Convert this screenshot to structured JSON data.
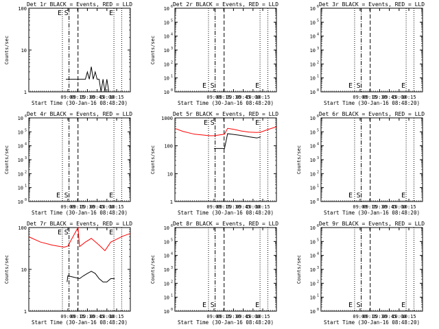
{
  "window_title": "",
  "chart_data": [
    {
      "type": "line",
      "title": "Det 1r BLACK = Events, RED = LLD",
      "ylabel": "Counts/sec",
      "xlabel": "Start Time (30-Jan-16 08:48:20)",
      "x_ticks": [
        "09:00",
        "09:15",
        "09:30",
        "09:45",
        "10:00",
        "10:15"
      ],
      "y_log": true,
      "y_range": [
        1,
        100
      ],
      "y_ticks": [
        "1",
        "10",
        "100"
      ],
      "x_range_minutes": [
        8.0,
        10.6
      ],
      "markers": [
        {
          "label": "E",
          "type": "dotted",
          "x": 8.86
        },
        {
          "label": "S",
          "type": "dashdot",
          "x": 9.03
        },
        {
          "label": "",
          "type": "dashed",
          "x": 9.26
        },
        {
          "label": "E",
          "type": "dotted",
          "x": 10.18
        },
        {
          "label": "",
          "type": "dotted",
          "x": 10.38
        }
      ],
      "series": [
        {
          "name": "BLACK",
          "color": "#000000",
          "x": [
            8.95,
            9.27,
            9.35,
            9.45,
            9.5,
            9.55,
            9.6,
            9.65,
            9.7,
            9.75,
            9.8,
            9.85,
            9.9,
            9.95,
            10.0,
            10.05
          ],
          "y": [
            2,
            2,
            2,
            2,
            3,
            2,
            4,
            2,
            3,
            2,
            2,
            1,
            2,
            1,
            2,
            1
          ]
        },
        {
          "name": "RED",
          "color": "#ff0000",
          "x": [],
          "y": []
        }
      ]
    },
    {
      "type": "line",
      "title": "Det 2r BLACK = Events, RED = LLD",
      "ylabel": "Counts/sec",
      "xlabel": "Start Time (30-Jan-16 08:48:20)",
      "x_ticks": [
        "09:00",
        "09:15",
        "09:30",
        "09:45",
        "10:00",
        "10:15"
      ],
      "y_log": true,
      "y_range": [
        1,
        1000000
      ],
      "y_ticks": [
        "10^0",
        "10^1",
        "10^2",
        "10^3",
        "10^4",
        "10^5",
        "10^6"
      ],
      "x_range_minutes": [
        8.0,
        10.6
      ],
      "markers": [
        {
          "label": "E",
          "type": "dotted",
          "x": 8.86
        },
        {
          "label": "S",
          "type": "dashdot",
          "x": 9.03
        },
        {
          "label": "",
          "type": "dashed",
          "x": 9.26
        },
        {
          "label": "E",
          "type": "dotted",
          "x": 10.18
        },
        {
          "label": "",
          "type": "dotted",
          "x": 10.38
        }
      ],
      "series": []
    },
    {
      "type": "line",
      "title": "Det 3r BLACK = Events, RED = LLD",
      "ylabel": "",
      "xlabel": "Start Time (30-Jan-16 08:48:20)",
      "x_ticks": [
        "09:00",
        "09:15",
        "09:30",
        "09:45",
        "10:00",
        "10:15"
      ],
      "y_log": true,
      "y_range": [
        1,
        1000000
      ],
      "y_ticks": [
        "10^0",
        "10^1",
        "10^2",
        "10^3",
        "10^4",
        "10^5",
        "10^6"
      ],
      "x_range_minutes": [
        8.0,
        10.6
      ],
      "markers": [
        {
          "label": "E",
          "type": "dotted",
          "x": 8.86
        },
        {
          "label": "S",
          "type": "dashdot",
          "x": 9.03
        },
        {
          "label": "",
          "type": "dashed",
          "x": 9.26
        },
        {
          "label": "E",
          "type": "dotted",
          "x": 10.18
        },
        {
          "label": "",
          "type": "dotted",
          "x": 10.38
        }
      ],
      "series": []
    },
    {
      "type": "line",
      "title": "Det 4r BLACK = Events, RED = LLD",
      "ylabel": "Counts/sec",
      "xlabel": "Start Time (30-Jan-16 08:48:20)",
      "x_ticks": [
        "09:00",
        "09:15",
        "09:30",
        "09:45",
        "10:00",
        "10:15"
      ],
      "y_log": true,
      "y_range": [
        1,
        1000000
      ],
      "y_ticks": [
        "10^0",
        "10^1",
        "10^2",
        "10^3",
        "10^4",
        "10^5",
        "10^6"
      ],
      "x_range_minutes": [
        8.0,
        10.6
      ],
      "markers": [
        {
          "label": "E",
          "type": "dotted",
          "x": 8.86
        },
        {
          "label": "S",
          "type": "dashdot",
          "x": 9.03
        },
        {
          "label": "",
          "type": "dashed",
          "x": 9.26
        },
        {
          "label": "E",
          "type": "dotted",
          "x": 10.18
        },
        {
          "label": "",
          "type": "dotted",
          "x": 10.38
        }
      ],
      "series": []
    },
    {
      "type": "line",
      "title": "Det 5r BLACK = Events, RED = LLD",
      "ylabel": "Counts/sec",
      "xlabel": "Start Time (30-Jan-16 08:48:20)",
      "x_ticks": [
        "09:00",
        "09:15",
        "09:30",
        "09:45",
        "10:00",
        "10:15"
      ],
      "y_log": true,
      "y_range": [
        1,
        1000
      ],
      "y_ticks": [
        "1",
        "10",
        "100",
        "1000"
      ],
      "x_range_minutes": [
        8.0,
        10.6
      ],
      "markers": [
        {
          "label": "E",
          "type": "dotted",
          "x": 8.86
        },
        {
          "label": "S",
          "type": "dashdot",
          "x": 9.03
        },
        {
          "label": "",
          "type": "dashed",
          "x": 9.26
        },
        {
          "label": "E",
          "type": "dotted",
          "x": 10.18
        },
        {
          "label": "",
          "type": "dotted",
          "x": 10.38
        }
      ],
      "series": [
        {
          "name": "RED",
          "color": "#ff0000",
          "x": [
            8.0,
            8.2,
            8.5,
            8.9,
            9.0,
            9.27,
            9.35,
            9.5,
            9.7,
            9.9,
            10.1,
            10.2,
            10.4,
            10.6
          ],
          "y": [
            420,
            330,
            260,
            230,
            230,
            260,
            420,
            390,
            340,
            310,
            300,
            310,
            390,
            480
          ]
        },
        {
          "name": "BLACK",
          "color": "#000000",
          "x": [
            9.0,
            9.27,
            9.35,
            9.5,
            9.7,
            9.9,
            10.1,
            10.2
          ],
          "y": [
            80,
            80,
            270,
            255,
            235,
            210,
            190,
            210
          ]
        }
      ]
    },
    {
      "type": "line",
      "title": "Det 6r BLACK = Events, RED = LLD",
      "ylabel": "Counts/sec",
      "xlabel": "Start Time (30-Jan-16 08:48:20)",
      "x_ticks": [
        "09:00",
        "09:15",
        "09:30",
        "09:45",
        "10:00",
        "10:15"
      ],
      "y_log": true,
      "y_range": [
        1,
        1000000
      ],
      "y_ticks": [
        "10^0",
        "10^1",
        "10^2",
        "10^3",
        "10^4",
        "10^5",
        "10^6"
      ],
      "x_range_minutes": [
        8.0,
        10.6
      ],
      "markers": [
        {
          "label": "E",
          "type": "dotted",
          "x": 8.86
        },
        {
          "label": "S",
          "type": "dashdot",
          "x": 9.03
        },
        {
          "label": "",
          "type": "dashed",
          "x": 9.26
        },
        {
          "label": "E",
          "type": "dotted",
          "x": 10.18
        },
        {
          "label": "",
          "type": "dotted",
          "x": 10.38
        }
      ],
      "series": []
    },
    {
      "type": "line",
      "title": "Det 7r BLACK = Events, RED = LLD",
      "ylabel": "Counts/sec",
      "xlabel": "Start Time (30-Jan-16 08:48:20)",
      "x_ticks": [
        "09:00",
        "09:15",
        "09:30",
        "09:45",
        "10:00",
        "10:15"
      ],
      "y_log": true,
      "y_range": [
        1,
        100
      ],
      "y_ticks": [
        "1",
        "10",
        "100"
      ],
      "x_range_minutes": [
        8.0,
        10.6
      ],
      "markers": [
        {
          "label": "E",
          "type": "dotted",
          "x": 8.86
        },
        {
          "label": "S",
          "type": "dashdot",
          "x": 9.03
        },
        {
          "label": "",
          "type": "dashed",
          "x": 9.26
        },
        {
          "label": "E",
          "type": "dotted",
          "x": 10.18
        },
        {
          "label": "",
          "type": "dotted",
          "x": 10.38
        }
      ],
      "series": [
        {
          "name": "RED",
          "color": "#ff0000",
          "x": [
            8.0,
            8.3,
            8.6,
            8.9,
            9.0,
            9.26,
            9.3,
            9.45,
            9.6,
            9.8,
            9.95,
            10.1,
            10.2,
            10.4,
            10.6
          ],
          "y": [
            60,
            45,
            38,
            34,
            36,
            100,
            35,
            45,
            55,
            38,
            28,
            45,
            50,
            62,
            72
          ]
        },
        {
          "name": "BLACK",
          "color": "#000000",
          "x": [
            8.98,
            9.0,
            9.3,
            9.4,
            9.5,
            9.6,
            9.7,
            9.8,
            9.9,
            10.0,
            10.1,
            10.2
          ],
          "y": [
            5,
            7,
            6,
            7,
            8,
            9,
            8,
            6,
            5,
            5,
            6,
            6
          ]
        }
      ]
    },
    {
      "type": "line",
      "title": "Det 8r BLACK = Events, RED = LLD",
      "ylabel": "Counts/sec",
      "xlabel": "Start Time (30-Jan-16 08:48:20)",
      "x_ticks": [
        "09:00",
        "09:15",
        "09:30",
        "09:45",
        "10:00",
        "10:15"
      ],
      "y_log": true,
      "y_range": [
        1,
        1000000
      ],
      "y_ticks": [
        "10^0",
        "10^1",
        "10^2",
        "10^3",
        "10^4",
        "10^5",
        "10^6"
      ],
      "x_range_minutes": [
        8.0,
        10.6
      ],
      "markers": [
        {
          "label": "E",
          "type": "dotted",
          "x": 8.86
        },
        {
          "label": "S",
          "type": "dashdot",
          "x": 9.03
        },
        {
          "label": "",
          "type": "dashed",
          "x": 9.26
        },
        {
          "label": "E",
          "type": "dotted",
          "x": 10.18
        },
        {
          "label": "",
          "type": "dotted",
          "x": 10.38
        }
      ],
      "series": []
    },
    {
      "type": "line",
      "title": "Det 9r BLACK = Events, RED = LLD",
      "ylabel": "Counts/sec",
      "xlabel": "Start Time (30-Jan-16 08:48:20)",
      "x_ticks": [
        "09:00",
        "09:15",
        "09:30",
        "09:45",
        "10:00",
        "10:15"
      ],
      "y_log": true,
      "y_range": [
        1,
        1000000
      ],
      "y_ticks": [
        "10^0",
        "10^1",
        "10^2",
        "10^3",
        "10^4",
        "10^5",
        "10^6"
      ],
      "x_range_minutes": [
        8.0,
        10.6
      ],
      "markers": [
        {
          "label": "E",
          "type": "dotted",
          "x": 8.86
        },
        {
          "label": "S",
          "type": "dashdot",
          "x": 9.03
        },
        {
          "label": "",
          "type": "dashed",
          "x": 9.26
        },
        {
          "label": "E",
          "type": "dotted",
          "x": 10.18
        },
        {
          "label": "",
          "type": "dotted",
          "x": 10.38
        }
      ],
      "series": []
    }
  ]
}
